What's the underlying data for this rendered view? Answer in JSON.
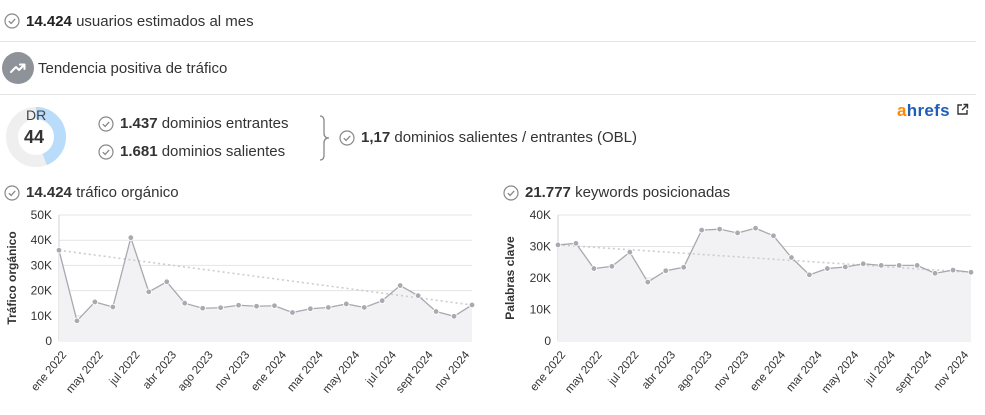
{
  "users": {
    "value": "14.424",
    "label": "usuarios estimados al mes"
  },
  "trend": {
    "label": "Tendencia positiva de tráfico"
  },
  "dr": {
    "label": "DR",
    "value": "44",
    "score": 44
  },
  "backlinks": {
    "incoming_value": "1.437",
    "incoming_label": "dominios entrantes",
    "outgoing_value": "1.681",
    "outgoing_label": "dominios salientes",
    "obl_value": "1,17",
    "obl_label": "dominios salientes / entrantes (OBL)"
  },
  "brand": {
    "logo_a": "a",
    "logo_rest": "hrefs"
  },
  "traffic": {
    "value": "14.424",
    "label": "tráfico orgánico"
  },
  "keywords": {
    "value": "21.777",
    "label": "keywords posicionadas"
  },
  "colors": {
    "accent": "#b9dcfb",
    "gauge_bg": "#efefef",
    "line": "#a8a8b0",
    "point": "#a9a9b1",
    "area": "#f2f2f5",
    "trendline": "#cccccc"
  },
  "chart_data": [
    {
      "type": "line",
      "title": "tráfico orgánico",
      "ylabel": "Tráfico orgánico",
      "ylim": [
        0,
        50000
      ],
      "yticks": [
        "0",
        "10K",
        "20K",
        "30K",
        "40K",
        "50K"
      ],
      "xtick_labels": [
        "ene 2022",
        "may 2022",
        "jul 2022",
        "abr 2023",
        "ago 2023",
        "nov 2023",
        "ene 2024",
        "mar 2024",
        "may 2024",
        "jul 2024",
        "sept 2024",
        "nov 2024"
      ],
      "values": [
        36000,
        8000,
        15500,
        13500,
        41000,
        19500,
        23500,
        15000,
        13000,
        13200,
        14200,
        13800,
        14000,
        11300,
        12800,
        13300,
        14700,
        13300,
        16000,
        22000,
        18000,
        11700,
        9800,
        14300
      ],
      "trend": [
        36000,
        14300
      ],
      "grid": true
    },
    {
      "type": "line",
      "title": "keywords posicionadas",
      "ylabel": "Palabras clave",
      "ylim": [
        0,
        40000
      ],
      "yticks": [
        "0",
        "10K",
        "20K",
        "30K",
        "40K"
      ],
      "xtick_labels": [
        "ene 2022",
        "may 2022",
        "jul 2022",
        "abr 2023",
        "ago 2023",
        "nov 2023",
        "ene 2024",
        "mar 2024",
        "may 2024",
        "jul 2024",
        "sept 2024",
        "nov 2024"
      ],
      "values": [
        30500,
        31000,
        23000,
        23700,
        28200,
        18700,
        22300,
        23400,
        35200,
        35500,
        34300,
        35800,
        33400,
        26500,
        21000,
        23000,
        23500,
        24500,
        24000,
        24000,
        24000,
        21500,
        22500,
        21800
      ],
      "trend": [
        30500,
        21800
      ],
      "grid": true
    }
  ]
}
